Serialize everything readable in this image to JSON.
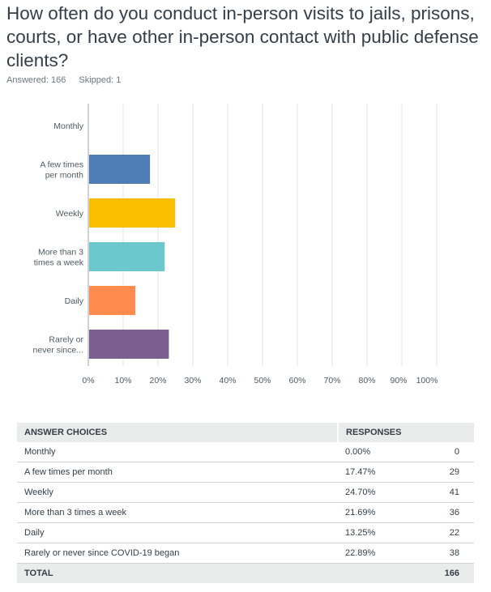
{
  "question": "How often do you conduct in-person visits to jails, prisons, courts, or have other in-person contact with public defense clients?",
  "answered": "Answered: 166",
  "skipped": "Skipped: 1",
  "chart_data": {
    "type": "bar",
    "orientation": "horizontal",
    "categories": [
      [
        "Monthly"
      ],
      [
        "A few times",
        "per month"
      ],
      [
        "Weekly"
      ],
      [
        "More than 3",
        "times a week"
      ],
      [
        "Daily"
      ],
      [
        "Rarely or",
        "never since..."
      ]
    ],
    "values": [
      0,
      17.47,
      24.7,
      21.69,
      13.25,
      22.89
    ],
    "colors": [
      "#ffffff",
      "#507cb6",
      "#f9be00",
      "#6bc8cd",
      "#ff8b4f",
      "#7d5e90"
    ],
    "xticks": [
      "0%",
      "10%",
      "20%",
      "30%",
      "40%",
      "50%",
      "60%",
      "70%",
      "80%",
      "90%",
      "100%"
    ],
    "xlim": [
      0,
      100
    ],
    "grid": true
  },
  "table": {
    "headers": [
      "ANSWER CHOICES",
      "RESPONSES"
    ],
    "rows": [
      {
        "choice": "Monthly",
        "pct": "0.00%",
        "count": "0"
      },
      {
        "choice": "A few times per month",
        "pct": "17.47%",
        "count": "29"
      },
      {
        "choice": "Weekly",
        "pct": "24.70%",
        "count": "41"
      },
      {
        "choice": "More than 3 times a week",
        "pct": "21.69%",
        "count": "36"
      },
      {
        "choice": "Daily",
        "pct": "13.25%",
        "count": "22"
      },
      {
        "choice": "Rarely or never since COVID-19 began",
        "pct": "22.89%",
        "count": "38"
      }
    ],
    "total_label": "TOTAL",
    "total": "166"
  }
}
